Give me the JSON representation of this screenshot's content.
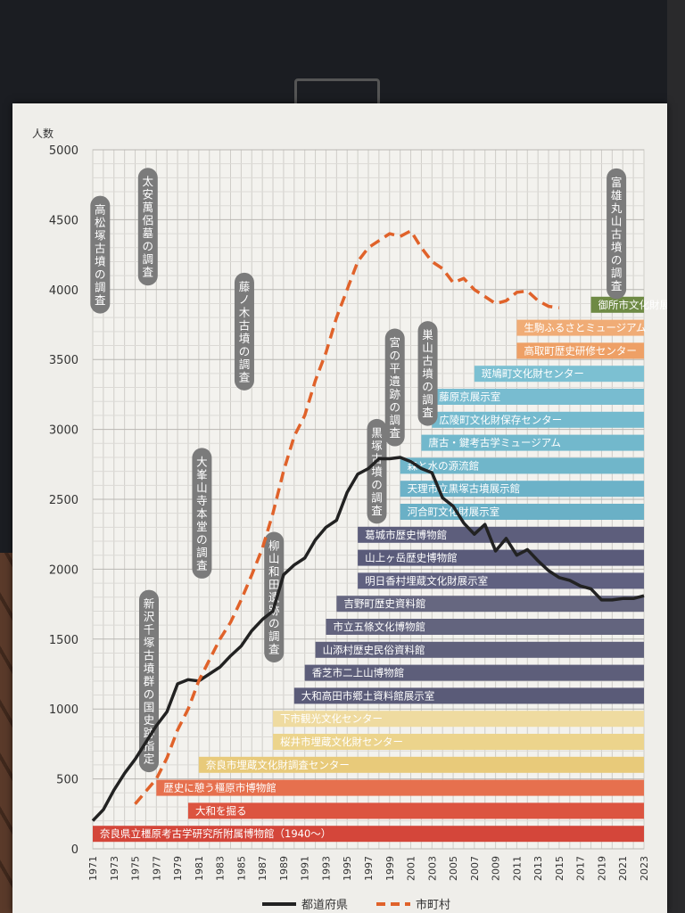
{
  "chart_data": {
    "type": "line",
    "ylabel": "人数",
    "ylim": [
      0,
      5000
    ],
    "yticks": [
      0,
      500,
      1000,
      1500,
      2000,
      2500,
      3000,
      3500,
      4000,
      4500,
      5000
    ],
    "xlim": [
      1971,
      2023
    ],
    "xticks": [
      1971,
      1973,
      1975,
      1977,
      1979,
      1981,
      1983,
      1985,
      1987,
      1989,
      1991,
      1993,
      1995,
      1997,
      1999,
      2001,
      2003,
      2005,
      2007,
      2009,
      2011,
      2013,
      2015,
      2017,
      2019,
      2021,
      2023
    ],
    "series": [
      {
        "name": "都道府県",
        "color": "#222222",
        "dash": false,
        "x": [
          1971,
          1972,
          1973,
          1974,
          1975,
          1976,
          1977,
          1978,
          1979,
          1980,
          1981,
          1982,
          1983,
          1984,
          1985,
          1986,
          1987,
          1988,
          1989,
          1990,
          1991,
          1992,
          1993,
          1994,
          1995,
          1996,
          1997,
          1998,
          1999,
          2000,
          2001,
          2002,
          2003,
          2004,
          2005,
          2006,
          2007,
          2008,
          2009,
          2010,
          2011,
          2012,
          2013,
          2014,
          2015,
          2016,
          2017,
          2018,
          2019,
          2020,
          2021,
          2022,
          2023
        ],
        "values": [
          200,
          280,
          420,
          540,
          640,
          760,
          880,
          980,
          1180,
          1210,
          1200,
          1250,
          1300,
          1380,
          1450,
          1560,
          1640,
          1700,
          1960,
          2030,
          2080,
          2210,
          2300,
          2350,
          2550,
          2680,
          2720,
          2790,
          2790,
          2800,
          2770,
          2720,
          2690,
          2510,
          2450,
          2330,
          2250,
          2320,
          2130,
          2220,
          2100,
          2140,
          2060,
          1990,
          1940,
          1920,
          1880,
          1860,
          1780,
          1780,
          1790,
          1790,
          1810
        ]
      },
      {
        "name": "市町村",
        "color": "#e0622a",
        "dash": true,
        "x": [
          1975,
          1976,
          1977,
          1978,
          1979,
          1980,
          1981,
          1982,
          1983,
          1984,
          1985,
          1986,
          1987,
          1988,
          1989,
          1990,
          1991,
          1992,
          1993,
          1994,
          1995,
          1996,
          1997,
          1998,
          1999,
          2000,
          2001,
          2002,
          2003,
          2004,
          2005,
          2006,
          2007,
          2008,
          2009,
          2010,
          2011,
          2012,
          2013,
          2014,
          2015
        ],
        "values": [
          320,
          410,
          500,
          650,
          850,
          1000,
          1200,
          1350,
          1500,
          1620,
          1780,
          1960,
          2150,
          2400,
          2700,
          2950,
          3100,
          3350,
          3550,
          3800,
          4000,
          4200,
          4300,
          4350,
          4400,
          4380,
          4420,
          4300,
          4200,
          4150,
          4050,
          4080,
          4000,
          3950,
          3900,
          3920,
          3980,
          3990,
          3920,
          3880,
          3870
        ]
      }
    ],
    "legend": {
      "placement": "bottom",
      "items": [
        "都道府県",
        "市町村"
      ]
    },
    "annotations": [
      {
        "text": "高松塚古墳の調査",
        "x": 1971.7,
        "y": 4250
      },
      {
        "text": "太安萬侶墓の調査",
        "x": 1976.2,
        "y": 4450
      },
      {
        "text": "藤ノ木古墳の調査",
        "x": 1985.3,
        "y": 3700
      },
      {
        "text": "大峯山寺本堂の調査",
        "x": 1981.3,
        "y": 2400
      },
      {
        "text": "柳山和田遺跡の調査",
        "x": 1988.1,
        "y": 1800
      },
      {
        "text": "新沢千塚古墳群の国史跡指定",
        "x": 1976.3,
        "y": 1200
      },
      {
        "text": "黒塚古墳の調査",
        "x": 1997.8,
        "y": 2700
      },
      {
        "text": "宮の平遺跡の調査",
        "x": 1999.5,
        "y": 3300
      },
      {
        "text": "巣山古墳の調査",
        "x": 2002.6,
        "y": 3400
      },
      {
        "text": "富雄丸山古墳の調査",
        "x": 2020.4,
        "y": 4400
      }
    ],
    "timeline_bars": [
      {
        "label": "奈良県立橿原考古学研究所附属博物館（1940～）",
        "start": 1971,
        "color": "#d4463a"
      },
      {
        "label": "大和を掘る",
        "start": 1980,
        "color": "#dc5440"
      },
      {
        "label": "歴史に憩う橿原市博物館",
        "start": 1977,
        "color": "#e6704e"
      },
      {
        "label": "奈良市埋蔵文化財調査センター",
        "start": 1981,
        "color": "#e8ca7a"
      },
      {
        "label": "桜井市埋蔵文化財センター",
        "start": 1988,
        "color": "#ecd48c"
      },
      {
        "label": "下市観光文化センター",
        "start": 1988,
        "color": "#efdba0"
      },
      {
        "label": "大和高田市郷土資料館展示室",
        "start": 1990,
        "color": "#5a5b78"
      },
      {
        "label": "香芝市二上山博物館",
        "start": 1991,
        "color": "#5d5e7a"
      },
      {
        "label": "山添村歴史民俗資料館",
        "start": 1992,
        "color": "#60617c"
      },
      {
        "label": "市立五條文化博物館",
        "start": 1993,
        "color": "#63647e"
      },
      {
        "label": "吉野町歴史資料館",
        "start": 1994,
        "color": "#666780"
      },
      {
        "label": "明日香村埋蔵文化財展示室",
        "start": 1996,
        "color": "#606180"
      },
      {
        "label": "山上ヶ岳歴史博物館",
        "start": 1996,
        "color": "#5a5b7a"
      },
      {
        "label": "葛城市歴史博物館",
        "start": 1996,
        "color": "#5d5e7c"
      },
      {
        "label": "河合町文化財展示室",
        "start": 2000,
        "color": "#6ab0c6"
      },
      {
        "label": "天理市立黒塚古墳展示館",
        "start": 2000,
        "color": "#6cb2c8"
      },
      {
        "label": "森と水の源流館",
        "start": 2000,
        "color": "#70b6ca"
      },
      {
        "label": "唐古・鍵考古学ミュージアム",
        "start": 2002,
        "color": "#72b8cc"
      },
      {
        "label": "広陵町文化財保存センター",
        "start": 2003,
        "color": "#74bace"
      },
      {
        "label": "藤原京展示室",
        "start": 2003,
        "color": "#78bcd0"
      },
      {
        "label": "斑鳩町文化財センター",
        "start": 2007,
        "color": "#7cc0d2"
      },
      {
        "label": "高取町歴史研修センター",
        "start": 2011,
        "color": "#eea066"
      },
      {
        "label": "生駒ふるさとミュージアム",
        "start": 2011,
        "color": "#f0ac76"
      },
      {
        "label": "御所市文化財展示室",
        "start": 2018,
        "color": "#6e8a44"
      }
    ]
  }
}
